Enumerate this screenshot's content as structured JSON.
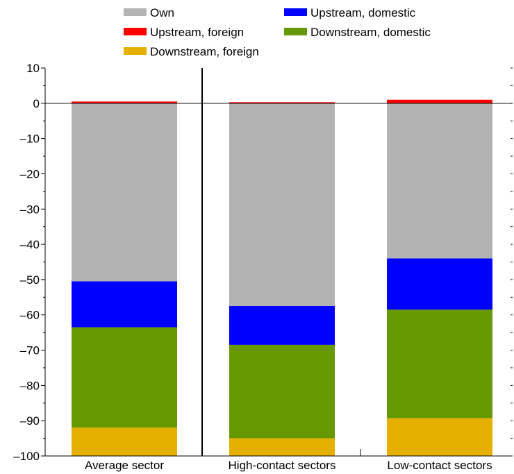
{
  "chart_data": {
    "type": "bar",
    "stacked": true,
    "categories": [
      "Average sector",
      "High-contact sectors",
      "Low-contact sectors"
    ],
    "ylim": [
      -100,
      10
    ],
    "yticks": [
      10,
      0,
      -10,
      -20,
      -30,
      -40,
      -50,
      -60,
      -70,
      -80,
      -90,
      -100
    ],
    "ytick_labels": [
      "10",
      "0",
      "–10",
      "–20",
      "–30",
      "–40",
      "–50",
      "–60",
      "–70",
      "–80",
      "–90",
      "–100"
    ],
    "series": [
      {
        "name": "Own",
        "color": "#b3b3b3",
        "values": [
          -50.5,
          -57.5,
          -44
        ]
      },
      {
        "name": "Upstream, domestic",
        "color": "#0000ff",
        "values": [
          -13,
          -11,
          -14.5
        ]
      },
      {
        "name": "Upstream, foreign",
        "color": "#ff0000",
        "values": [
          0.5,
          0.3,
          1.0
        ]
      },
      {
        "name": "Downstream, domestic",
        "color": "#669900",
        "values": [
          -28.5,
          -26.5,
          -30.8
        ]
      },
      {
        "name": "Downstream, foreign",
        "color": "#e6b000",
        "values": [
          -8,
          -5,
          -10.7
        ]
      }
    ],
    "legend": {
      "position": "top",
      "order": [
        "Own",
        "Upstream, domestic",
        "Upstream, foreign",
        "Downstream, domestic",
        "Downstream, foreign"
      ]
    },
    "grid": false
  }
}
